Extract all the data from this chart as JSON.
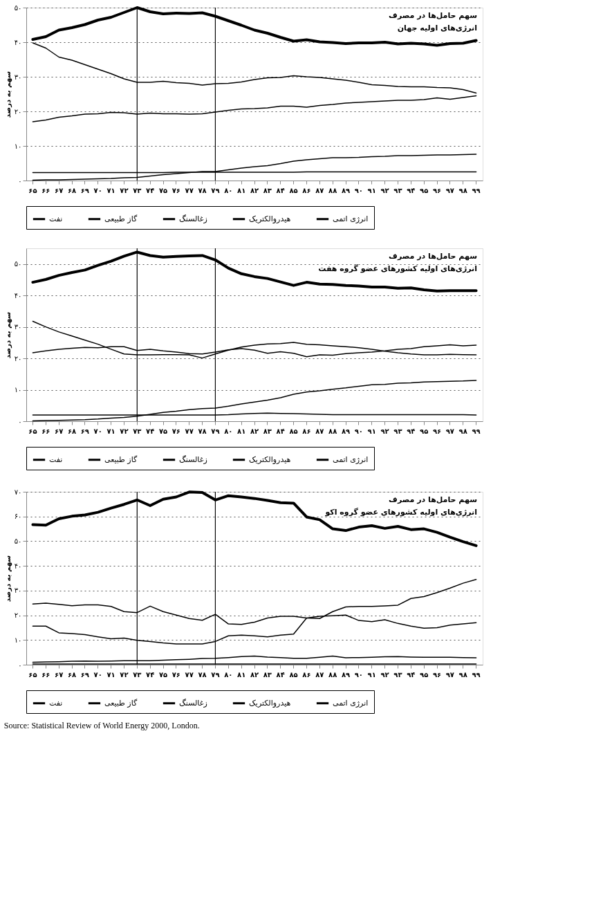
{
  "chart_data": [
    {
      "type": "line",
      "title": "سهم حامل‌ها در مصرف",
      "subtitle": "انرژی‌های اولیه جهان",
      "ylabel": "سهم به درصد",
      "categories": [
        "۶۵",
        "۶۶",
        "۶۷",
        "۶۸",
        "۶۹",
        "۷۰",
        "۷۱",
        "۷۲",
        "۷۳",
        "۷۴",
        "۷۵",
        "۷۶",
        "۷۷",
        "۷۸",
        "۷۹",
        "۸۰",
        "۸۱",
        "۸۲",
        "۸۳",
        "۸۴",
        "۸۵",
        "۸۶",
        "۸۷",
        "۸۸",
        "۸۹",
        "۹۰",
        "۹۱",
        "۹۲",
        "۹۳",
        "۹۴",
        "۹۵",
        "۹۶",
        "۹۷",
        "۹۸",
        "۹۹"
      ],
      "ylim": [
        0,
        50
      ],
      "yticks": [
        {
          "value": 0,
          "label": "۰"
        },
        {
          "value": 10,
          "label": "۱۰"
        },
        {
          "value": 20,
          "label": "۲۰"
        },
        {
          "value": 30,
          "label": "۳۰"
        },
        {
          "value": 40,
          "label": "۴۰"
        },
        {
          "value": 50,
          "label": "۵۰"
        }
      ],
      "grid": "y",
      "legend": "bottom",
      "ref_lines": [
        {
          "axis": "x",
          "value": "۷۳",
          "color": "#000000"
        },
        {
          "axis": "x",
          "value": "۷۹",
          "color": "#000000"
        }
      ],
      "series": [
        {
          "name": "نفت",
          "color": "#000000",
          "values": [
            40.8,
            41.6,
            43.5,
            44.2,
            45.1,
            46.4,
            47.2,
            48.6,
            50,
            48.8,
            48.2,
            48.4,
            48.3,
            48.5,
            47.5,
            46.2,
            44.9,
            43.5,
            42.6,
            41.4,
            40.3,
            40.7,
            40.1,
            39.9,
            39.6,
            39.8,
            39.8,
            40,
            39.5,
            39.7,
            39.5,
            39.1,
            39.6,
            39.7,
            40.5
          ]
        },
        {
          "name": "گاز طبیعی",
          "color": "#000000",
          "values": [
            17,
            17.5,
            18.3,
            18.7,
            19.2,
            19.3,
            19.7,
            19.6,
            19.2,
            19.5,
            19.3,
            19.3,
            19.2,
            19.3,
            19.8,
            20.3,
            20.7,
            20.8,
            21,
            21.5,
            21.5,
            21.2,
            21.7,
            22,
            22.4,
            22.6,
            22.8,
            23,
            23.2,
            23.2,
            23.4,
            23.9,
            23.5,
            24,
            24.5
          ]
        },
        {
          "name": "زغالسنگ",
          "color": "#000000",
          "values": [
            39.8,
            38.3,
            35.7,
            34.8,
            33.5,
            32.2,
            30.9,
            29.4,
            28.4,
            28.4,
            28.7,
            28.3,
            28.1,
            27.6,
            28,
            28.1,
            28.5,
            29.2,
            29.7,
            29.8,
            30.3,
            30,
            29.8,
            29.4,
            29,
            28.4,
            27.7,
            27.5,
            27.2,
            27.1,
            27.1,
            26.9,
            26.8,
            26.3,
            25.3
          ]
        },
        {
          "name": "هیدروالکتریک",
          "color": "#000000",
          "values": [
            2.3,
            2.3,
            2.3,
            2.3,
            2.3,
            2.3,
            2.3,
            2.3,
            2.3,
            2.3,
            2.3,
            2.4,
            2.4,
            2.4,
            2.4,
            2.4,
            2.4,
            2.4,
            2.4,
            2.4,
            2.4,
            2.5,
            2.5,
            2.5,
            2.5,
            2.5,
            2.5,
            2.5,
            2.5,
            2.5,
            2.5,
            2.5,
            2.5,
            2.5,
            2.5
          ]
        },
        {
          "name": "انرژی اتمی",
          "color": "#000000",
          "values": [
            0.1,
            0.2,
            0.2,
            0.3,
            0.4,
            0.5,
            0.6,
            0.8,
            0.9,
            1.3,
            1.7,
            2,
            2.3,
            2.6,
            2.6,
            3.1,
            3.6,
            4,
            4.3,
            4.9,
            5.6,
            6,
            6.3,
            6.6,
            6.6,
            6.7,
            6.9,
            7,
            7.2,
            7.2,
            7.3,
            7.4,
            7.4,
            7.5,
            7.6
          ]
        }
      ]
    },
    {
      "type": "line",
      "title": "سهم حامل‌ها در مصرف",
      "subtitle": "انرژی‌های اولیه کشورهای عضو گروه هفت",
      "ylabel": "سهم به درصد",
      "categories": [
        "۶۵",
        "۶۶",
        "۶۷",
        "۶۸",
        "۶۹",
        "۷۰",
        "۷۱",
        "۷۲",
        "۷۳",
        "۷۴",
        "۷۵",
        "۷۶",
        "۷۷",
        "۷۸",
        "۷۹",
        "۸۰",
        "۸۱",
        "۸۲",
        "۸۳",
        "۸۴",
        "۸۵",
        "۸۶",
        "۸۷",
        "۸۸",
        "۸۹",
        "۹۰",
        "۹۱",
        "۹۲",
        "۹۳",
        "۹۴",
        "۹۵",
        "۹۶",
        "۹۷",
        "۹۸",
        "۹۹"
      ],
      "ylim": [
        0,
        55
      ],
      "yticks": [
        {
          "value": 0,
          "label": "۰"
        },
        {
          "value": 10,
          "label": "۱۰"
        },
        {
          "value": 20,
          "label": "۲۰"
        },
        {
          "value": 30,
          "label": "۳۰"
        },
        {
          "value": 40,
          "label": "۴۰"
        },
        {
          "value": 50,
          "label": "۵۰"
        }
      ],
      "grid": "y",
      "legend": "bottom",
      "ref_lines": [
        {
          "axis": "x",
          "value": "۷۳",
          "color": "#000000"
        },
        {
          "axis": "x",
          "value": "۷۹",
          "color": "#000000"
        }
      ],
      "series": [
        {
          "name": "نفت",
          "color": "#000000",
          "values": [
            44.2,
            45.1,
            46.4,
            47.3,
            48.1,
            49.6,
            50.9,
            52.5,
            53.8,
            52.7,
            52.2,
            52.4,
            52.6,
            52.7,
            51.3,
            48.7,
            46.9,
            46,
            45.4,
            44.3,
            43.2,
            44.2,
            43.6,
            43.5,
            43.2,
            43,
            42.7,
            42.7,
            42.3,
            42.4,
            41.8,
            41.4,
            41.5,
            41.5,
            41.5
          ]
        },
        {
          "name": "گاز طبیعی",
          "color": "#000000",
          "values": [
            21.8,
            22.4,
            22.9,
            23.2,
            23.5,
            23.4,
            23.7,
            23.7,
            22.5,
            22.9,
            22.4,
            22,
            21.5,
            21.4,
            22,
            22.7,
            23.1,
            22.6,
            21.6,
            22.1,
            21.6,
            20.5,
            21.1,
            21,
            21.5,
            21.8,
            22,
            22.4,
            22.9,
            23.1,
            23.7,
            24,
            24.3,
            24,
            24.2
          ]
        },
        {
          "name": "زغالسنگ",
          "color": "#000000",
          "values": [
            31.8,
            30,
            28.4,
            27.1,
            25.8,
            24.5,
            22.9,
            21.4,
            21.1,
            21.1,
            21.2,
            21.2,
            21.1,
            20.1,
            21.4,
            22.6,
            23.6,
            24.2,
            24.6,
            24.7,
            25.1,
            24.5,
            24.3,
            24,
            23.7,
            23.4,
            22.9,
            22.3,
            21.8,
            21.4,
            21.1,
            21.1,
            21.3,
            21.2,
            21.1
          ]
        },
        {
          "name": "هیدروالکتریک",
          "color": "#000000",
          "values": [
            2,
            2,
            2,
            2,
            2,
            2,
            2,
            2,
            2,
            2,
            2,
            2,
            2,
            2,
            2,
            2.1,
            2.3,
            2.5,
            2.6,
            2.5,
            2.4,
            2.3,
            2.2,
            2.1,
            2.1,
            2.1,
            2.1,
            2.1,
            2.1,
            2.1,
            2.1,
            2.1,
            2.1,
            2.1,
            2
          ]
        },
        {
          "name": "انرژی اتمی",
          "color": "#000000",
          "values": [
            0.1,
            0.2,
            0.3,
            0.4,
            0.5,
            0.7,
            1,
            1.2,
            1.6,
            2.2,
            2.8,
            3.2,
            3.7,
            4,
            4.2,
            4.8,
            5.5,
            6.1,
            6.7,
            7.5,
            8.6,
            9.3,
            9.7,
            10.2,
            10.6,
            11.1,
            11.6,
            11.7,
            12.1,
            12.2,
            12.5,
            12.6,
            12.7,
            12.8,
            13
          ]
        }
      ]
    },
    {
      "type": "line",
      "title": "سهم حامل‌ها در مصرف",
      "subtitle": "انرژی‌های اولیه کشورهای عضو گروه اکو",
      "ylabel": "سهم به درصد",
      "categories": [
        "۶۵",
        "۶۶",
        "۶۷",
        "۶۸",
        "۶۹",
        "۷۰",
        "۷۱",
        "۷۲",
        "۷۳",
        "۷۴",
        "۷۵",
        "۷۶",
        "۷۷",
        "۷۸",
        "۷۹",
        "۸۰",
        "۸۱",
        "۸۲",
        "۸۳",
        "۸۴",
        "۸۵",
        "۸۶",
        "۸۷",
        "۸۸",
        "۸۹",
        "۹۰",
        "۹۱",
        "۹۲",
        "۹۳",
        "۹۴",
        "۹۵",
        "۹۶",
        "۹۷",
        "۹۸",
        "۹۹"
      ],
      "ylim": [
        0,
        70
      ],
      "yticks": [
        {
          "value": 0,
          "label": "۰"
        },
        {
          "value": 10,
          "label": "۱۰"
        },
        {
          "value": 20,
          "label": "۲۰"
        },
        {
          "value": 30,
          "label": "۳۰"
        },
        {
          "value": 40,
          "label": "۴۰"
        },
        {
          "value": 50,
          "label": "۵۰"
        },
        {
          "value": 60,
          "label": "۶۰"
        },
        {
          "value": 70,
          "label": "۷۰"
        }
      ],
      "grid": "y",
      "legend": "bottom",
      "ref_lines": [
        {
          "axis": "x",
          "value": "۷۳",
          "color": "#000000"
        },
        {
          "axis": "x",
          "value": "۷۹",
          "color": "#000000"
        }
      ],
      "annotations": [
        "Source: Statistical Review of World Energy 2000, London."
      ],
      "series": [
        {
          "name": "نفت",
          "color": "#000000",
          "values": [
            56.7,
            56.5,
            59.1,
            60.1,
            60.6,
            61.7,
            63.4,
            64.9,
            66.7,
            64.4,
            67,
            67.9,
            69.9,
            69.7,
            66.7,
            68.4,
            67.9,
            67.3,
            66.5,
            65.6,
            65.4,
            59.8,
            58.7,
            55,
            54.3,
            55.7,
            56.3,
            55.2,
            56,
            54.7,
            55,
            53.6,
            51.6,
            49.8,
            48.2
          ]
        },
        {
          "name": "گاز طبیعی",
          "color": "#000000",
          "values": [
            24.6,
            24.9,
            24.4,
            23.9,
            24.2,
            24.2,
            23.6,
            21.5,
            21.1,
            23.7,
            21.5,
            20.1,
            18.7,
            18,
            20.4,
            16.5,
            16.3,
            17.2,
            18.9,
            19.6,
            19.6,
            18.9,
            18.7,
            21.5,
            23.4,
            23.6,
            23.6,
            23.8,
            24.1,
            26.8,
            27.6,
            29.2,
            31,
            33,
            34.5
          ]
        },
        {
          "name": "زغالسنگ",
          "color": "#000000",
          "values": [
            15.6,
            15.6,
            12.9,
            12.6,
            12.2,
            11.3,
            10.5,
            10.8,
            9.9,
            9.4,
            8.8,
            8.4,
            8.4,
            8.4,
            9.4,
            11.7,
            12,
            11.7,
            11.3,
            12,
            12.4,
            18.9,
            19.6,
            19.8,
            20.1,
            17.9,
            17.4,
            18.2,
            16.7,
            15.6,
            14.8,
            15,
            16,
            16.5,
            17
          ]
        },
        {
          "name": "هیدروالکتریک",
          "color": "#000000",
          "values": [
            1,
            1.1,
            1.2,
            1.4,
            1.5,
            1.4,
            1.5,
            1.6,
            1.6,
            1.6,
            1.8,
            2,
            2.2,
            2.5,
            2.6,
            2.9,
            3.3,
            3.5,
            3.1,
            2.9,
            2.6,
            2.6,
            3,
            3.5,
            2.8,
            2.9,
            3,
            3.2,
            3.3,
            3.1,
            3,
            3,
            3,
            2.9,
            2.8
          ]
        },
        {
          "name": "انرژی اتمی",
          "color": "#000000",
          "values": [
            0.3,
            0.3,
            0.3,
            0.3,
            0.3,
            0.3,
            0.3,
            0.3,
            0.3,
            0.3,
            0.3,
            0.3,
            0.3,
            0.3,
            0.3,
            0.3,
            0.3,
            0.3,
            0.3,
            0.3,
            0.3,
            0.3,
            0.3,
            0.3,
            0.3,
            0.3,
            0.3,
            0.3,
            0.3,
            0.3,
            0.3,
            0.3,
            0.3,
            0.3,
            0.3
          ]
        }
      ]
    }
  ]
}
